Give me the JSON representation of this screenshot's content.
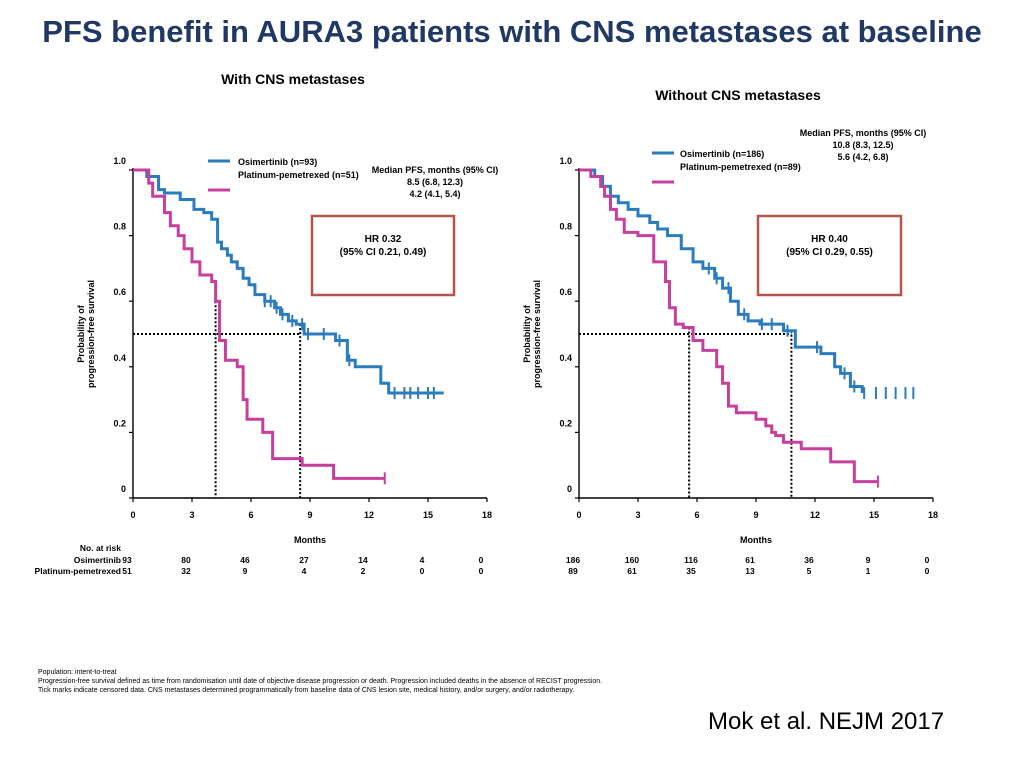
{
  "slide": {
    "title": "PFS benefit in AURA3 patients with CNS metastases at baseline",
    "citation": "Mok et al. NEJM 2017",
    "footnotes": [
      "Population: intent-to-treat",
      "Progression-free survival defined as time from randomisation until date of objective disease progression or death. Progression included deaths in the absence of RECIST progression.",
      "Tick marks indicate censored data. CNS metastases determined programmatically from baseline data of CNS lesion site, medical history, and/or surgery, and/or radiotherapy."
    ]
  },
  "colors": {
    "osimertinib": "#2b7bbf",
    "platinum": "#c73f9e",
    "hr_box": "#b5544a",
    "title": "#1f3864"
  },
  "chart_data": [
    {
      "type": "line",
      "chart_subtype": "kaplan-meier",
      "title": "With CNS metastases",
      "xlabel": "Months",
      "ylabel": "Probability of progression-free survival",
      "xlim": [
        0,
        18
      ],
      "ylim": [
        0,
        1
      ],
      "xticks": [
        0,
        3,
        6,
        9,
        12,
        15,
        18
      ],
      "xtick_labels": [
        "0",
        "3",
        "6",
        "9",
        "12",
        "15",
        "18"
      ],
      "yticks": [
        0,
        0.2,
        0.4,
        0.6,
        0.8,
        1.0
      ],
      "ytick_labels": [
        "0",
        "0.2",
        "0.4",
        "0.6",
        "0.8",
        "1.0"
      ],
      "legend": [
        "Osimertinib (n=93)",
        "Platinum-pemetrexed (n=51)"
      ],
      "median_header": "Median PFS, months (95% CI)",
      "median_values": [
        "8.5 (6.8, 12.3)",
        "4.2 (4.1, 5.4)"
      ],
      "medians": [
        8.5,
        4.2
      ],
      "hr_lines": [
        "HR 0.32",
        "(95% CI 0.21, 0.49)"
      ],
      "series": [
        {
          "name": "Osimertinib",
          "x": [
            0,
            0.7,
            1.3,
            1.6,
            2.4,
            3.1,
            3.6,
            4.0,
            4.3,
            4.5,
            4.8,
            5.0,
            5.3,
            5.6,
            5.9,
            6.2,
            6.7,
            7.2,
            7.5,
            7.9,
            8.3,
            8.7,
            9.3,
            10.3,
            10.9,
            11.3,
            12.6,
            13.0,
            15.8
          ],
          "y": [
            1.0,
            0.98,
            0.94,
            0.93,
            0.91,
            0.88,
            0.87,
            0.85,
            0.78,
            0.76,
            0.74,
            0.72,
            0.7,
            0.67,
            0.65,
            0.62,
            0.6,
            0.58,
            0.56,
            0.54,
            0.53,
            0.5,
            0.5,
            0.48,
            0.42,
            0.4,
            0.35,
            0.32,
            0.32
          ],
          "censored_x": [
            6.7,
            7.0,
            7.3,
            7.6,
            8.1,
            8.6,
            8.9,
            9.7,
            10.5,
            11.0,
            13.3,
            13.8,
            14.1,
            14.5,
            15.0,
            15.3
          ]
        },
        {
          "name": "Platinum-pemetrexed",
          "x": [
            0,
            0.8,
            1.0,
            1.6,
            1.9,
            2.3,
            2.6,
            3.0,
            3.4,
            4.0,
            4.2,
            4.4,
            4.7,
            5.3,
            5.6,
            5.8,
            6.6,
            7.1,
            8.6,
            10.2,
            12.8
          ],
          "y": [
            1.0,
            0.96,
            0.92,
            0.87,
            0.83,
            0.8,
            0.76,
            0.72,
            0.68,
            0.66,
            0.6,
            0.48,
            0.42,
            0.4,
            0.3,
            0.24,
            0.2,
            0.12,
            0.1,
            0.06,
            0.06
          ],
          "censored_x": [
            12.8
          ]
        }
      ],
      "risk_table": {
        "header": "No. at risk",
        "rows": [
          {
            "name": "Osimertinib",
            "values": [
              "93",
              "80",
              "46",
              "27",
              "14",
              "4",
              "0"
            ]
          },
          {
            "name": "Platinum-pemetrexed",
            "values": [
              "51",
              "32",
              "9",
              "4",
              "2",
              "0",
              "0"
            ]
          }
        ]
      }
    },
    {
      "type": "line",
      "chart_subtype": "kaplan-meier",
      "title": "Without CNS metastases",
      "xlabel": "Months",
      "ylabel": "Probability of progression-free survival",
      "xlim": [
        0,
        18
      ],
      "ylim": [
        0,
        1
      ],
      "xticks": [
        0,
        3,
        6,
        9,
        12,
        15,
        18
      ],
      "xtick_labels": [
        "0",
        "3",
        "6",
        "9",
        "12",
        "15",
        "18"
      ],
      "yticks": [
        0,
        0.2,
        0.4,
        0.6,
        0.8,
        1.0
      ],
      "ytick_labels": [
        "0",
        "0.2",
        "0.4",
        "0.6",
        "0.8",
        "1.0"
      ],
      "legend": [
        "Osimertinib (n=186)",
        "Platinum-pemetrexed (n=89)"
      ],
      "median_header": "Median PFS, months (95% CI)",
      "median_values": [
        "10.8 (8.3, 12.5)",
        "5.6 (4.2, 6.8)"
      ],
      "medians": [
        10.8,
        5.6
      ],
      "hr_lines": [
        "HR 0.40",
        "(95% CI 0.29, 0.55)"
      ],
      "series": [
        {
          "name": "Osimertinib",
          "x": [
            0,
            0.8,
            1.2,
            1.6,
            2.0,
            2.5,
            3.0,
            3.6,
            4.0,
            4.5,
            5.2,
            5.8,
            6.3,
            6.9,
            7.3,
            7.7,
            8.1,
            8.6,
            9.2,
            10.4,
            11.0,
            12.3,
            13.0,
            13.3,
            13.8,
            14.4
          ],
          "y": [
            1.0,
            0.98,
            0.95,
            0.92,
            0.9,
            0.88,
            0.86,
            0.84,
            0.82,
            0.8,
            0.76,
            0.72,
            0.7,
            0.67,
            0.64,
            0.6,
            0.56,
            0.54,
            0.53,
            0.51,
            0.46,
            0.44,
            0.4,
            0.38,
            0.34,
            0.32
          ],
          "censored_x": [
            6.6,
            7.0,
            7.6,
            8.4,
            9.3,
            9.8,
            10.6,
            12.1,
            13.5,
            14.0,
            14.5,
            15.1,
            15.6,
            16.1,
            16.6,
            17.0
          ]
        },
        {
          "name": "Platinum-pemetrexed",
          "x": [
            0,
            0.6,
            1.1,
            1.3,
            1.6,
            1.9,
            2.3,
            3.0,
            3.8,
            4.4,
            4.6,
            4.9,
            5.3,
            5.8,
            6.3,
            7.0,
            7.3,
            7.6,
            8.0,
            9.0,
            9.5,
            9.8,
            10.0,
            10.4,
            11.3,
            12.8,
            14.0,
            15.2
          ],
          "y": [
            1.0,
            0.98,
            0.95,
            0.92,
            0.88,
            0.85,
            0.81,
            0.8,
            0.72,
            0.66,
            0.58,
            0.53,
            0.52,
            0.48,
            0.45,
            0.4,
            0.35,
            0.28,
            0.26,
            0.24,
            0.22,
            0.2,
            0.19,
            0.17,
            0.15,
            0.11,
            0.05,
            0.05
          ],
          "censored_x": [
            15.2
          ]
        }
      ],
      "risk_table": {
        "header": "",
        "rows": [
          {
            "name": "",
            "values": [
              "186",
              "160",
              "116",
              "61",
              "36",
              "9",
              "0"
            ]
          },
          {
            "name": "",
            "values": [
              "89",
              "61",
              "35",
              "13",
              "5",
              "1",
              "0"
            ]
          }
        ]
      }
    }
  ]
}
